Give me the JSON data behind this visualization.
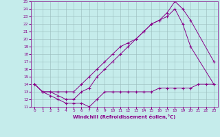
{
  "xlabel": "Windchill (Refroidissement éolien,°C)",
  "xlim": [
    -0.5,
    23.5
  ],
  "ylim": [
    11,
    25
  ],
  "xticks": [
    0,
    1,
    2,
    3,
    4,
    5,
    6,
    7,
    8,
    9,
    10,
    11,
    12,
    13,
    14,
    15,
    16,
    17,
    18,
    19,
    20,
    21,
    22,
    23
  ],
  "yticks": [
    11,
    12,
    13,
    14,
    15,
    16,
    17,
    18,
    19,
    20,
    21,
    22,
    23,
    24,
    25
  ],
  "bg_color": "#c5eceb",
  "line_color": "#880088",
  "grid_color": "#99bbbb",
  "line1_x": [
    0,
    1,
    2,
    3,
    4,
    5,
    6,
    7,
    8,
    9,
    10,
    11,
    12,
    13,
    14,
    15,
    16,
    17,
    18,
    19,
    20,
    21,
    22,
    23
  ],
  "line1_y": [
    14,
    13,
    12.5,
    12,
    11.5,
    11.5,
    11.5,
    11,
    12,
    13,
    13,
    13,
    13,
    13,
    13,
    13,
    13.5,
    13.5,
    13.5,
    13.5,
    13.5,
    14,
    14,
    14
  ],
  "line2_x": [
    0,
    1,
    2,
    3,
    4,
    5,
    6,
    7,
    8,
    9,
    10,
    11,
    12,
    13,
    14,
    15,
    16,
    17,
    18,
    19,
    20,
    23
  ],
  "line2_y": [
    14,
    13,
    13,
    13,
    13,
    13,
    14,
    15,
    16,
    17,
    18,
    19,
    19.5,
    20,
    21,
    22,
    22.5,
    23,
    24,
    22,
    19,
    14
  ],
  "line3_x": [
    0,
    1,
    2,
    3,
    4,
    5,
    6,
    7,
    8,
    9,
    10,
    11,
    12,
    13,
    14,
    15,
    16,
    17,
    18,
    19,
    20,
    23
  ],
  "line3_y": [
    14,
    13,
    13,
    12.5,
    12,
    12,
    13,
    13.5,
    15,
    16,
    17,
    18,
    19,
    20,
    21,
    22,
    22.5,
    23.5,
    25,
    24,
    22.5,
    17
  ]
}
